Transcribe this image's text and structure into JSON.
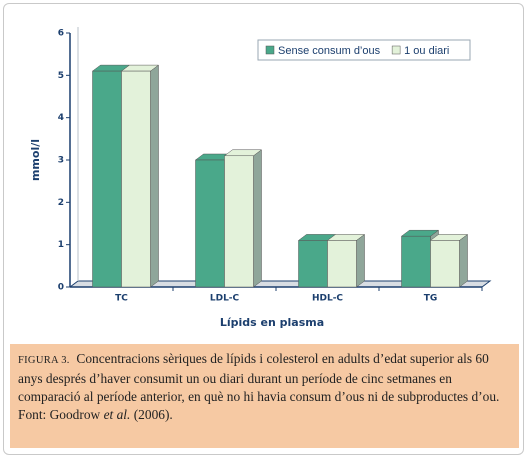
{
  "chart_data": {
    "type": "bar3d",
    "categories": [
      "TC",
      "LDL-C",
      "HDL-C",
      "TG"
    ],
    "series": [
      {
        "name": "Sense consum d’ous",
        "color": "#4aa88a",
        "values": [
          5.1,
          3.0,
          1.1,
          1.2
        ]
      },
      {
        "name": "1 ou diari",
        "color": "#e3f2da",
        "values": [
          5.1,
          3.1,
          1.1,
          1.1
        ]
      }
    ],
    "ylim": [
      0,
      6
    ],
    "yticks": [
      0,
      1,
      2,
      3,
      4,
      5,
      6
    ],
    "y_label": "mmol/l",
    "x_label": "Lípids en plasma",
    "legend": "top-right",
    "grid": false,
    "caption": {
      "label": "FIGURA 3.",
      "text": "Concentracions sèriques de lípids i colesterol en adults d’edat superior als 60 anys després d’haver consumit un ou diari durant un període de cinc setmanes en comparació al període anterior, en què no hi havia consum d’ous ni de subproductes d’ou.",
      "source_prefix": "Font: Goodrow",
      "source_italic": "et al.",
      "source_suffix": "(2006)."
    }
  }
}
